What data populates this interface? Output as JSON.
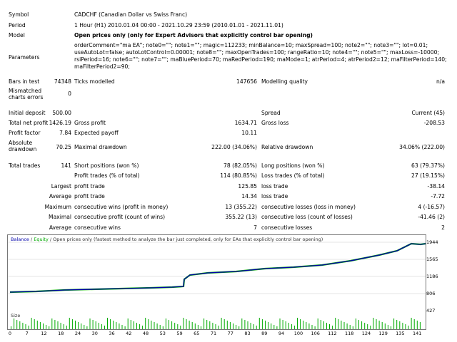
{
  "rows": {
    "symbol": {
      "label": "Symbol",
      "value": "CADCHF (Canadian Dollar vs Swiss Franc)"
    },
    "period": {
      "label": "Period",
      "value": "1 Hour (H1) 2010.01.04 00:00 - 2021.10.29 23:59 (2010.01.01 - 2021.11.01)"
    },
    "model": {
      "label": "Model",
      "value": "Open prices only (only for Expert Advisors that explicitly control bar opening)"
    },
    "parameters": {
      "label": "Parameters",
      "lines": [
        "orderComment=\"ma EA\"; note0=\"\"; note1=\"\"; magic=112233; minBalance=10; maxSpread=100; note2=\"\"; note3=\"\"; lot=0.01;",
        "useAutoLot=false; autoLotControl=0.00001; note8=\"\"; maxOpenTrades=100; rangeRatio=10; note4=\"\"; note5=\"\"; maxLoss=-10000;",
        "rsiPeriod=16; note6=\"\"; note7=\"\"; maBluePeriod=70; maRedPeriod=190; maMode=1; atrPeriod=4; atrPeriod2=12; maFilterPeriod=140;",
        "maFilterPeriod2=90;"
      ]
    },
    "bars": {
      "label": "Bars in test",
      "value": "74348",
      "ticks_label": "Ticks modelled",
      "ticks_value": "147656",
      "quality_label": "Modelling quality",
      "quality_value": "n/a"
    },
    "mismatched": {
      "label": "Mismatched charts errors",
      "value": "0"
    },
    "deposit": {
      "label": "Initial deposit",
      "value": "500.00",
      "spread_label": "Spread",
      "spread_value": "Current (45)"
    },
    "netprofit": {
      "label": "Total net profit",
      "value": "1426.19",
      "gp_label": "Gross profit",
      "gp_value": "1634.71",
      "gl_label": "Gross loss",
      "gl_value": "-208.53"
    },
    "pf": {
      "label": "Profit factor",
      "value": "7.84",
      "ep_label": "Expected payoff",
      "ep_value": "10.11"
    },
    "dd": {
      "label": "Absolute drawdown",
      "value": "70.25",
      "max_label": "Maximal drawdown",
      "max_value": "222.00 (34.06%)",
      "rel_label": "Relative drawdown",
      "rel_value": "34.06% (222.00)"
    },
    "trades": {
      "label": "Total trades",
      "value": "141",
      "short_label": "Short positions (won %)",
      "short_value": "78 (82.05%)",
      "long_label": "Long positions (won %)",
      "long_value": "63 (79.37%)"
    },
    "pt": {
      "label": "Profit trades (% of total)",
      "value": "114 (80.85%)",
      "lt_label": "Loss trades (% of total)",
      "lt_value": "27 (19.15%)"
    },
    "largest": {
      "label": "Largest",
      "p_label": "profit trade",
      "p_value": "125.85",
      "l_label": "loss trade",
      "l_value": "-38.14"
    },
    "average": {
      "label": "Average",
      "p_label": "profit trade",
      "p_value": "14.34",
      "l_label": "loss trade",
      "l_value": "-7.72"
    },
    "maxcons": {
      "label": "Maximum",
      "p_label": "consecutive wins (profit in money)",
      "p_value": "13 (355.22)",
      "l_label": "consecutive losses (loss in money)",
      "l_value": "4 (-16.57)"
    },
    "maximal": {
      "label": "Maximal",
      "p_label": "consecutive profit (count of wins)",
      "p_value": "355.22 (13)",
      "l_label": "consecutive loss (count of losses)",
      "l_value": "-41.46 (2)"
    },
    "avgcons": {
      "label": "Average",
      "p_label": "consecutive wins",
      "p_value": "7",
      "l_label": "consecutive losses",
      "l_value": "2"
    }
  },
  "chart": {
    "legend_balance": "Balance",
    "legend_sep": " / ",
    "legend_equity": "Equity",
    "legend_rest": " / Open prices only (fastest method to analyze the bar just completed, only for EAs that explicitly control bar opening)",
    "balance_color": "#0000aa",
    "equity_color": "#00aa00",
    "bar_color": "#00aa00",
    "y_ticks": [
      "1944",
      "1565",
      "1186",
      "806",
      "427"
    ],
    "x_ticks": [
      "0",
      "7",
      "12",
      "18",
      "24",
      "30",
      "36",
      "42",
      "48",
      "53",
      "59",
      "65",
      "71",
      "77",
      "83",
      "89",
      "94",
      "100",
      "106",
      "112",
      "118",
      "124",
      "129",
      "135",
      "141"
    ],
    "size_label": "Size"
  }
}
